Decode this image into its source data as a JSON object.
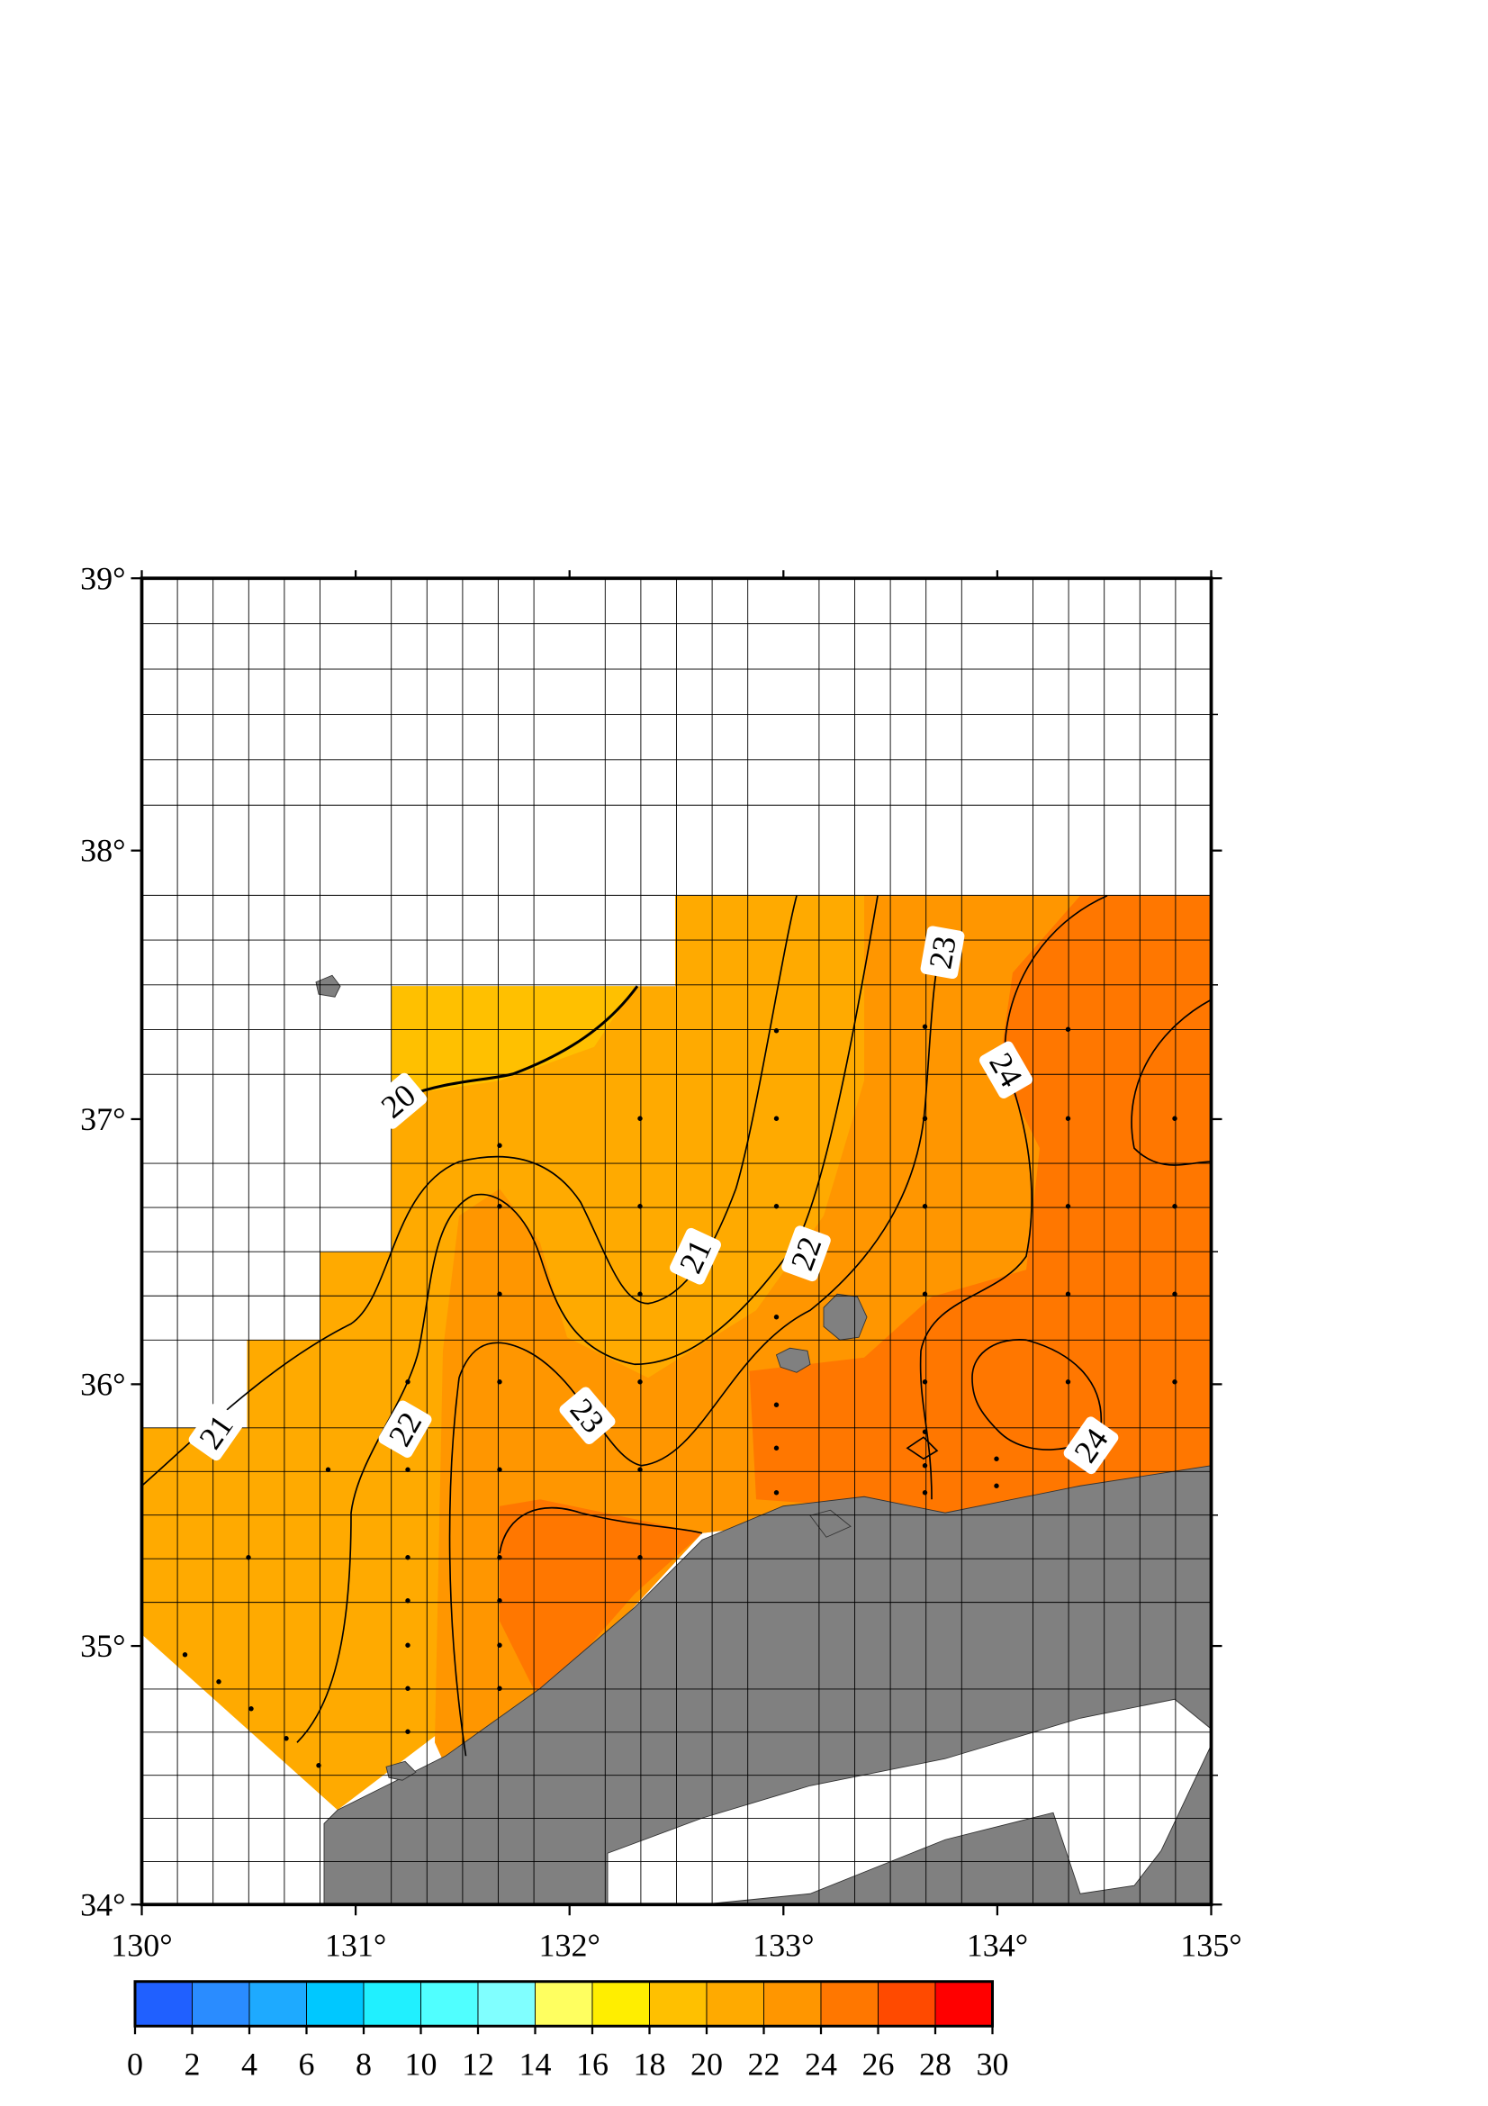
{
  "map": {
    "xlim": [
      130,
      135
    ],
    "ylim": [
      34,
      39
    ],
    "xticks": [
      {
        "value": 130,
        "label": "130°"
      },
      {
        "value": 131,
        "label": "131°"
      },
      {
        "value": 132,
        "label": "132°"
      },
      {
        "value": 133,
        "label": "133°"
      },
      {
        "value": 134,
        "label": "134°"
      },
      {
        "value": 135,
        "label": "135°"
      }
    ],
    "yticks": [
      {
        "value": 34,
        "label": "34°"
      },
      {
        "value": 35,
        "label": "35°"
      },
      {
        "value": 36,
        "label": "36°"
      },
      {
        "value": 37,
        "label": "37°"
      },
      {
        "value": 38,
        "label": "38°"
      },
      {
        "value": 39,
        "label": "39°"
      }
    ],
    "contour_labels": [
      "20",
      "21",
      "21",
      "22",
      "22",
      "23",
      "23",
      "24",
      "24"
    ],
    "colorbar": {
      "ticks": [
        0,
        2,
        4,
        6,
        8,
        10,
        12,
        14,
        16,
        18,
        20,
        22,
        24,
        26,
        28,
        30
      ],
      "colors": [
        "#2060ff",
        "#2a8cff",
        "#1eaaff",
        "#00c8ff",
        "#20f0ff",
        "#50ffff",
        "#80ffff",
        "#ffff60",
        "#ffee00",
        "#ffc000",
        "#ffaa00",
        "#ff9600",
        "#ff7700",
        "#ff4a00",
        "#ff0000"
      ]
    }
  }
}
